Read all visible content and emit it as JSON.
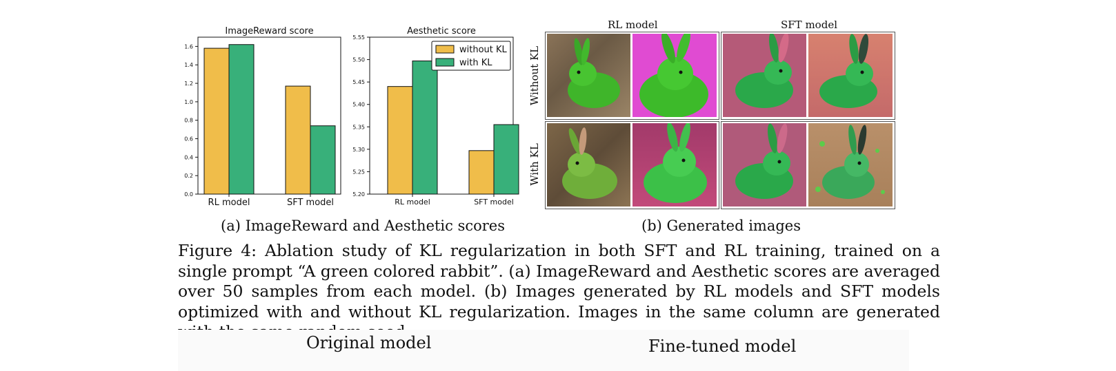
{
  "chart_data": [
    {
      "type": "bar",
      "title": "ImageReward score",
      "categories": [
        "RL model",
        "SFT model"
      ],
      "series": [
        {
          "name": "without KL",
          "values": [
            1.58,
            1.17
          ]
        },
        {
          "name": "with KL",
          "values": [
            1.62,
            0.74
          ]
        }
      ],
      "ylim": [
        0,
        1.7
      ],
      "yticks": [
        "0.0",
        "0.2",
        "0.4",
        "0.6",
        "0.8",
        "1.0",
        "1.2",
        "1.4",
        "1.6"
      ],
      "grid": false,
      "legend": "none"
    },
    {
      "type": "bar",
      "title": "Aesthetic score",
      "categories": [
        "RL model",
        "SFT model"
      ],
      "series": [
        {
          "name": "without KL",
          "values": [
            5.44,
            5.297
          ]
        },
        {
          "name": "with KL",
          "values": [
            5.497,
            5.355
          ]
        }
      ],
      "ylim": [
        5.2,
        5.55
      ],
      "yticks": [
        "5.20",
        "5.25",
        "5.30",
        "5.35",
        "5.40",
        "5.45",
        "5.50",
        "5.55"
      ],
      "grid": false,
      "legend": "top-right"
    }
  ],
  "colors": {
    "without_kl": "#f0bd4a",
    "with_kl": "#38b07a"
  },
  "images_panel": {
    "col_headers": [
      "RL model",
      "SFT model"
    ],
    "row_headers": [
      "Without KL",
      "With KL"
    ]
  },
  "captions": {
    "a": "(a) ImageReward and Aesthetic scores",
    "b": "(b) Generated images",
    "figure": "Figure 4: Ablation study of KL regularization in both SFT and RL training, trained on a single prompt “A green colored rabbit”. (a) ImageReward and Aesthetic scores are averaged over 50 samples from each model. (b) Images generated by RL models and SFT models optimized with and without KL regularization. Images in the same column are generated with the same random seed."
  },
  "next_figure": {
    "left_header": "Original model",
    "right_header": "Fine-tuned model"
  }
}
